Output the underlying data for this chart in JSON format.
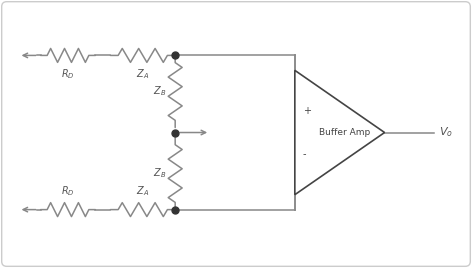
{
  "bg_color": "#ffffff",
  "border_color": "#cccccc",
  "line_color": "#888888",
  "dot_color": "#333333",
  "text_color": "#555555",
  "fig_width": 4.74,
  "fig_height": 2.7,
  "labels": {
    "RD_top": "R$_D$",
    "ZA_top": "Z$_A$",
    "ZB_upper": "Z$_B$",
    "ZB_lower": "Z$_B$",
    "RD_bot": "R$_D$",
    "ZA_bot": "Z$_A$",
    "Vo": "V$_o$",
    "plus": "+",
    "minus": "-",
    "buffer": "Buffer Amp"
  }
}
